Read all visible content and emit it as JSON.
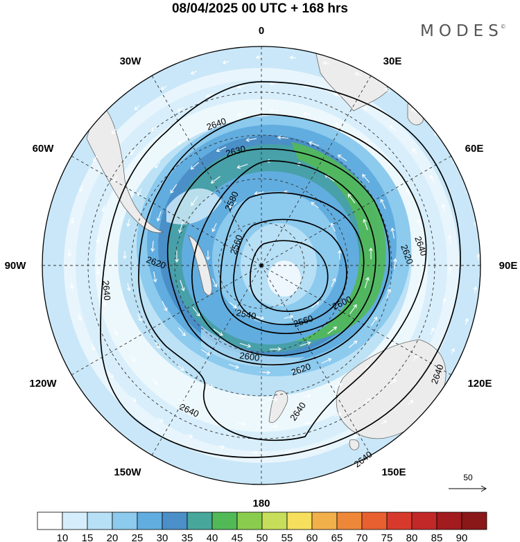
{
  "title": "08/04/2025  00 UTC  + 168 hrs",
  "brand": "MODES",
  "brand_mark": "©",
  "map": {
    "projection": "south-polar-stereographic",
    "lon_labels": [
      "0",
      "30E",
      "60E",
      "90E",
      "120E",
      "150E",
      "180",
      "150W",
      "120W",
      "90W",
      "60W",
      "30W"
    ],
    "contour_labels": [
      "2640",
      "2630",
      "2580",
      "2560",
      "2620",
      "2640",
      "2620",
      "2600",
      "2620",
      "2600",
      "2560",
      "2540",
      "2640",
      "2640",
      "2640",
      "2640",
      "2640"
    ],
    "wind_reference": {
      "value": "50",
      "unit_icon": "arrow-right-icon"
    }
  },
  "colorbar": {
    "labels": [
      "10",
      "15",
      "20",
      "25",
      "30",
      "35",
      "40",
      "45",
      "50",
      "55",
      "60",
      "65",
      "70",
      "75",
      "80",
      "85",
      "90"
    ],
    "colors": [
      "#ffffff",
      "#d6eefb",
      "#b7dff5",
      "#8ccaee",
      "#62addf",
      "#4a8fc8",
      "#47a79a",
      "#52b957",
      "#8acd4e",
      "#c6de5a",
      "#f5df5c",
      "#f2b04a",
      "#ee8838",
      "#e8602f",
      "#d73a2c",
      "#c22828",
      "#a21b1e",
      "#8a1818"
    ]
  },
  "colors": {
    "land": "#ececec",
    "contour": "#000000",
    "grid": "#333333"
  }
}
